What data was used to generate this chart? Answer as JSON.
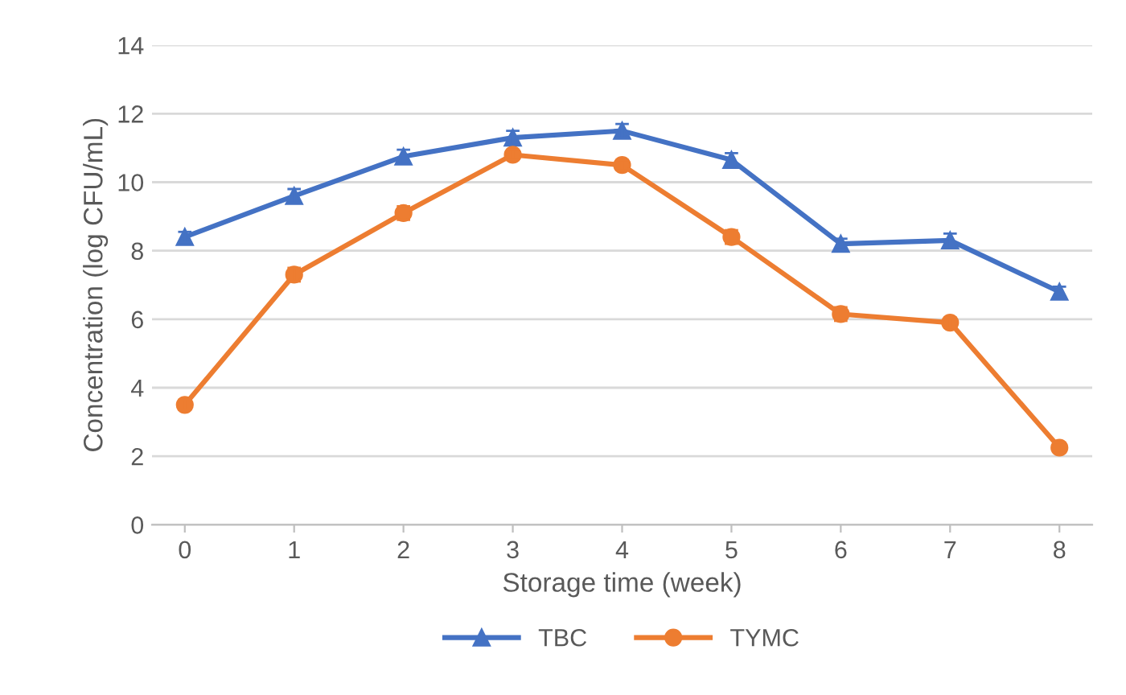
{
  "chart_data": {
    "type": "line",
    "xlabel": "Storage time (week)",
    "ylabel": "Concentration (log CFU/mL)",
    "categories": [
      "0",
      "1",
      "2",
      "3",
      "4",
      "5",
      "6",
      "7",
      "8"
    ],
    "ylim": [
      0,
      14
    ],
    "yticks": [
      0,
      2,
      4,
      6,
      8,
      10,
      12,
      14
    ],
    "grid": "y",
    "legend": "bottom",
    "line_style": "solid",
    "series": [
      {
        "name": "TBC",
        "color": "#4472c4",
        "marker": "triangle",
        "values": [
          8.4,
          9.6,
          10.75,
          11.3,
          11.5,
          10.65,
          8.2,
          8.3,
          6.8
        ],
        "errors": [
          0.15,
          0.2,
          0.2,
          0.2,
          0.2,
          0.2,
          0.15,
          0.2,
          0.15
        ]
      },
      {
        "name": "TYMC",
        "color": "#ed7d31",
        "marker": "circle",
        "values": [
          3.5,
          7.3,
          9.1,
          10.8,
          10.5,
          8.4,
          6.15,
          5.9,
          2.25
        ],
        "errors": [
          0.15,
          0.2,
          0.2,
          0.15,
          0.15,
          0.2,
          0.2,
          0.15,
          0.15
        ]
      }
    ]
  }
}
